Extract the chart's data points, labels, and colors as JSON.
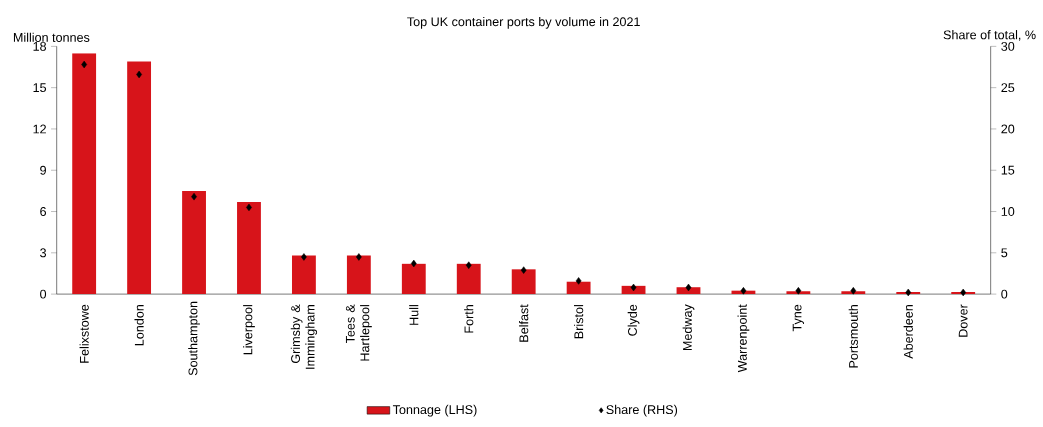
{
  "chart_data": {
    "type": "bar",
    "title": "Top UK container ports by volume in 2021",
    "ylabel": "Million tonnes",
    "y2label": "Share of total, %",
    "categories": [
      "Felixstowe",
      "London",
      "Southampton",
      "Liverpool",
      "Grimsby & Immingham",
      "Tees & Hartlepool",
      "Hull",
      "Forth",
      "Belfast",
      "Bristol",
      "Clyde",
      "Medway",
      "Warrenpoint",
      "Tyne",
      "Portsmouth",
      "Aberdeen",
      "Dover"
    ],
    "series": [
      {
        "name": "Tonnage (LHS)",
        "color": "#d7141a",
        "values": [
          17.5,
          16.9,
          7.5,
          6.7,
          2.8,
          2.8,
          2.2,
          2.2,
          1.8,
          0.9,
          0.6,
          0.5,
          0.25,
          0.2,
          0.2,
          0.15,
          0.15
        ]
      },
      {
        "name": "Share (RHS)",
        "type": "scatter",
        "axis": "y2",
        "marker": "diamond",
        "color": "#000000",
        "values": [
          27.8,
          26.6,
          11.8,
          10.5,
          4.5,
          4.5,
          3.7,
          3.5,
          2.9,
          1.6,
          0.8,
          0.8,
          0.4,
          0.4,
          0.4,
          0.2,
          0.2
        ]
      }
    ],
    "ylim": [
      0,
      18
    ],
    "yticks": [
      0,
      3,
      6,
      9,
      12,
      15,
      18
    ],
    "y2lim": [
      0,
      30
    ],
    "y2ticks": [
      0,
      5,
      10,
      15,
      20,
      25,
      30
    ],
    "legend": "bottom"
  }
}
